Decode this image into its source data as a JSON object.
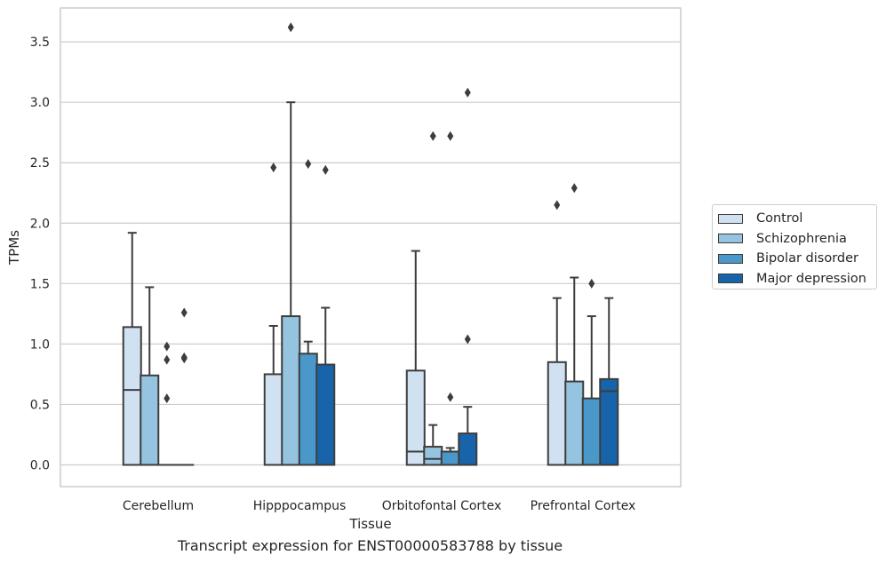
{
  "chart_data": {
    "type": "box",
    "title": "",
    "caption": "Transcript expression for ENST00000583788 by tissue",
    "xlabel": "Tissue",
    "ylabel": "TPMs",
    "ylim": [
      -0.18,
      3.78
    ],
    "yticks": [
      "0.0",
      "0.5",
      "1.0",
      "1.5",
      "2.0",
      "2.5",
      "3.0",
      "3.5"
    ],
    "ytick_values": [
      0,
      0.5,
      1.0,
      1.5,
      2.0,
      2.5,
      3.0,
      3.5
    ],
    "grid": "horizontal",
    "legend_position": "right",
    "categories": [
      "Cerebellum",
      "Hipppocampus",
      "Orbitofontal Cortex",
      "Prefrontal Cortex"
    ],
    "series": [
      {
        "name": "Control",
        "color": "#d0e1f2",
        "boxes": [
          {
            "whisker_low": 0,
            "q1": 0,
            "median": 0.62,
            "q3": 1.14,
            "whisker_high": 1.92,
            "outliers": []
          },
          {
            "whisker_low": 0,
            "q1": 0,
            "median": 0,
            "q3": 0.75,
            "whisker_high": 1.15,
            "outliers": [
              2.46
            ]
          },
          {
            "whisker_low": 0,
            "q1": 0,
            "median": 0.11,
            "q3": 0.78,
            "whisker_high": 1.77,
            "outliers": []
          },
          {
            "whisker_low": 0,
            "q1": 0,
            "median": 0,
            "q3": 0.85,
            "whisker_high": 1.38,
            "outliers": [
              2.15
            ]
          }
        ]
      },
      {
        "name": "Schizophrenia",
        "color": "#94c4df",
        "boxes": [
          {
            "whisker_low": 0,
            "q1": 0,
            "median": 0,
            "q3": 0.74,
            "whisker_high": 1.47,
            "outliers": []
          },
          {
            "whisker_low": 0,
            "q1": 0,
            "median": 0,
            "q3": 1.23,
            "whisker_high": 3.0,
            "outliers": [
              3.62
            ]
          },
          {
            "whisker_low": 0,
            "q1": 0,
            "median": 0.05,
            "q3": 0.15,
            "whisker_high": 0.33,
            "outliers": [
              2.72
            ]
          },
          {
            "whisker_low": 0,
            "q1": 0,
            "median": 0,
            "q3": 0.69,
            "whisker_high": 1.55,
            "outliers": [
              2.29
            ]
          }
        ]
      },
      {
        "name": "Bipolar disorder",
        "color": "#4a98c9",
        "boxes": [
          {
            "whisker_low": 0,
            "q1": 0,
            "median": 0,
            "q3": 0,
            "whisker_high": 0,
            "outliers": [
              0.55,
              0.87,
              0.98
            ]
          },
          {
            "whisker_low": 0,
            "q1": 0,
            "median": 0,
            "q3": 0.92,
            "whisker_high": 1.02,
            "outliers": [
              2.49
            ]
          },
          {
            "whisker_low": 0,
            "q1": 0,
            "median": 0,
            "q3": 0.11,
            "whisker_high": 0.14,
            "outliers": [
              0.56,
              2.72
            ]
          },
          {
            "whisker_low": 0,
            "q1": 0,
            "median": 0,
            "q3": 0.55,
            "whisker_high": 1.23,
            "outliers": [
              1.5
            ]
          }
        ]
      },
      {
        "name": "Major depression",
        "color": "#1764ab",
        "boxes": [
          {
            "whisker_low": 0,
            "q1": 0,
            "median": 0,
            "q3": 0,
            "whisker_high": 0,
            "outliers": [
              0.88,
              0.89,
              1.26
            ]
          },
          {
            "whisker_low": 0,
            "q1": 0,
            "median": 0,
            "q3": 0.83,
            "whisker_high": 1.3,
            "outliers": [
              2.44
            ]
          },
          {
            "whisker_low": 0,
            "q1": 0,
            "median": 0,
            "q3": 0.26,
            "whisker_high": 0.48,
            "outliers": [
              1.04,
              3.08
            ]
          },
          {
            "whisker_low": 0,
            "q1": 0,
            "median": 0.61,
            "q3": 0.71,
            "whisker_high": 1.38,
            "outliers": []
          }
        ]
      }
    ]
  }
}
